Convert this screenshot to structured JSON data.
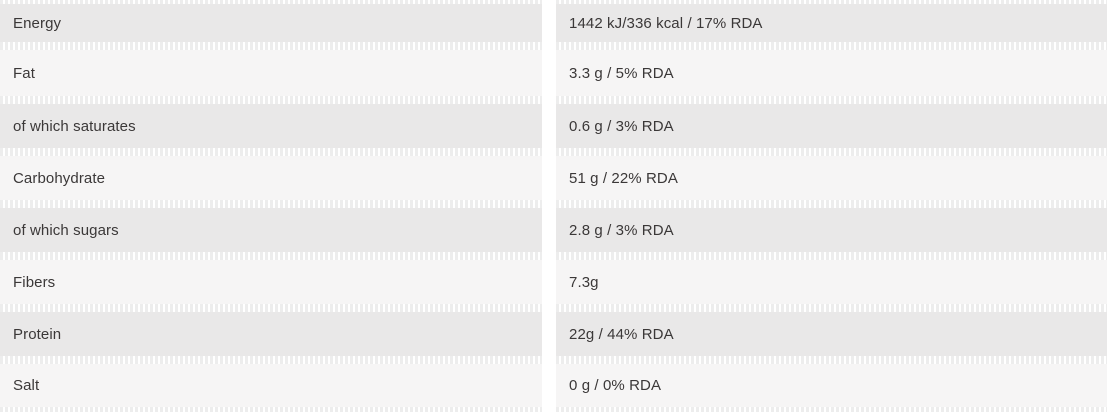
{
  "table": {
    "name": "nutrition-facts",
    "rows": [
      {
        "label": "Energy",
        "value": "1442 kJ/336 kcal / 17% RDA"
      },
      {
        "label": "Fat",
        "value": "3.3 g / 5% RDA"
      },
      {
        "label": "of which saturates",
        "value": "0.6 g / 3% RDA"
      },
      {
        "label": "Carbohydrate",
        "value": "51 g / 22% RDA"
      },
      {
        "label": "of which sugars",
        "value": "2.8 g / 3% RDA"
      },
      {
        "label": "Fibers",
        "value": "7.3g"
      },
      {
        "label": "Protein",
        "value": "22g / 44% RDA"
      },
      {
        "label": "Salt",
        "value": "0 g / 0% RDA"
      }
    ]
  },
  "colors": {
    "row_dark": "#e9e8e8",
    "row_light": "#f6f5f5",
    "text": "#3b3838",
    "dash": "#ededed",
    "page_bg": "#ffffff"
  }
}
